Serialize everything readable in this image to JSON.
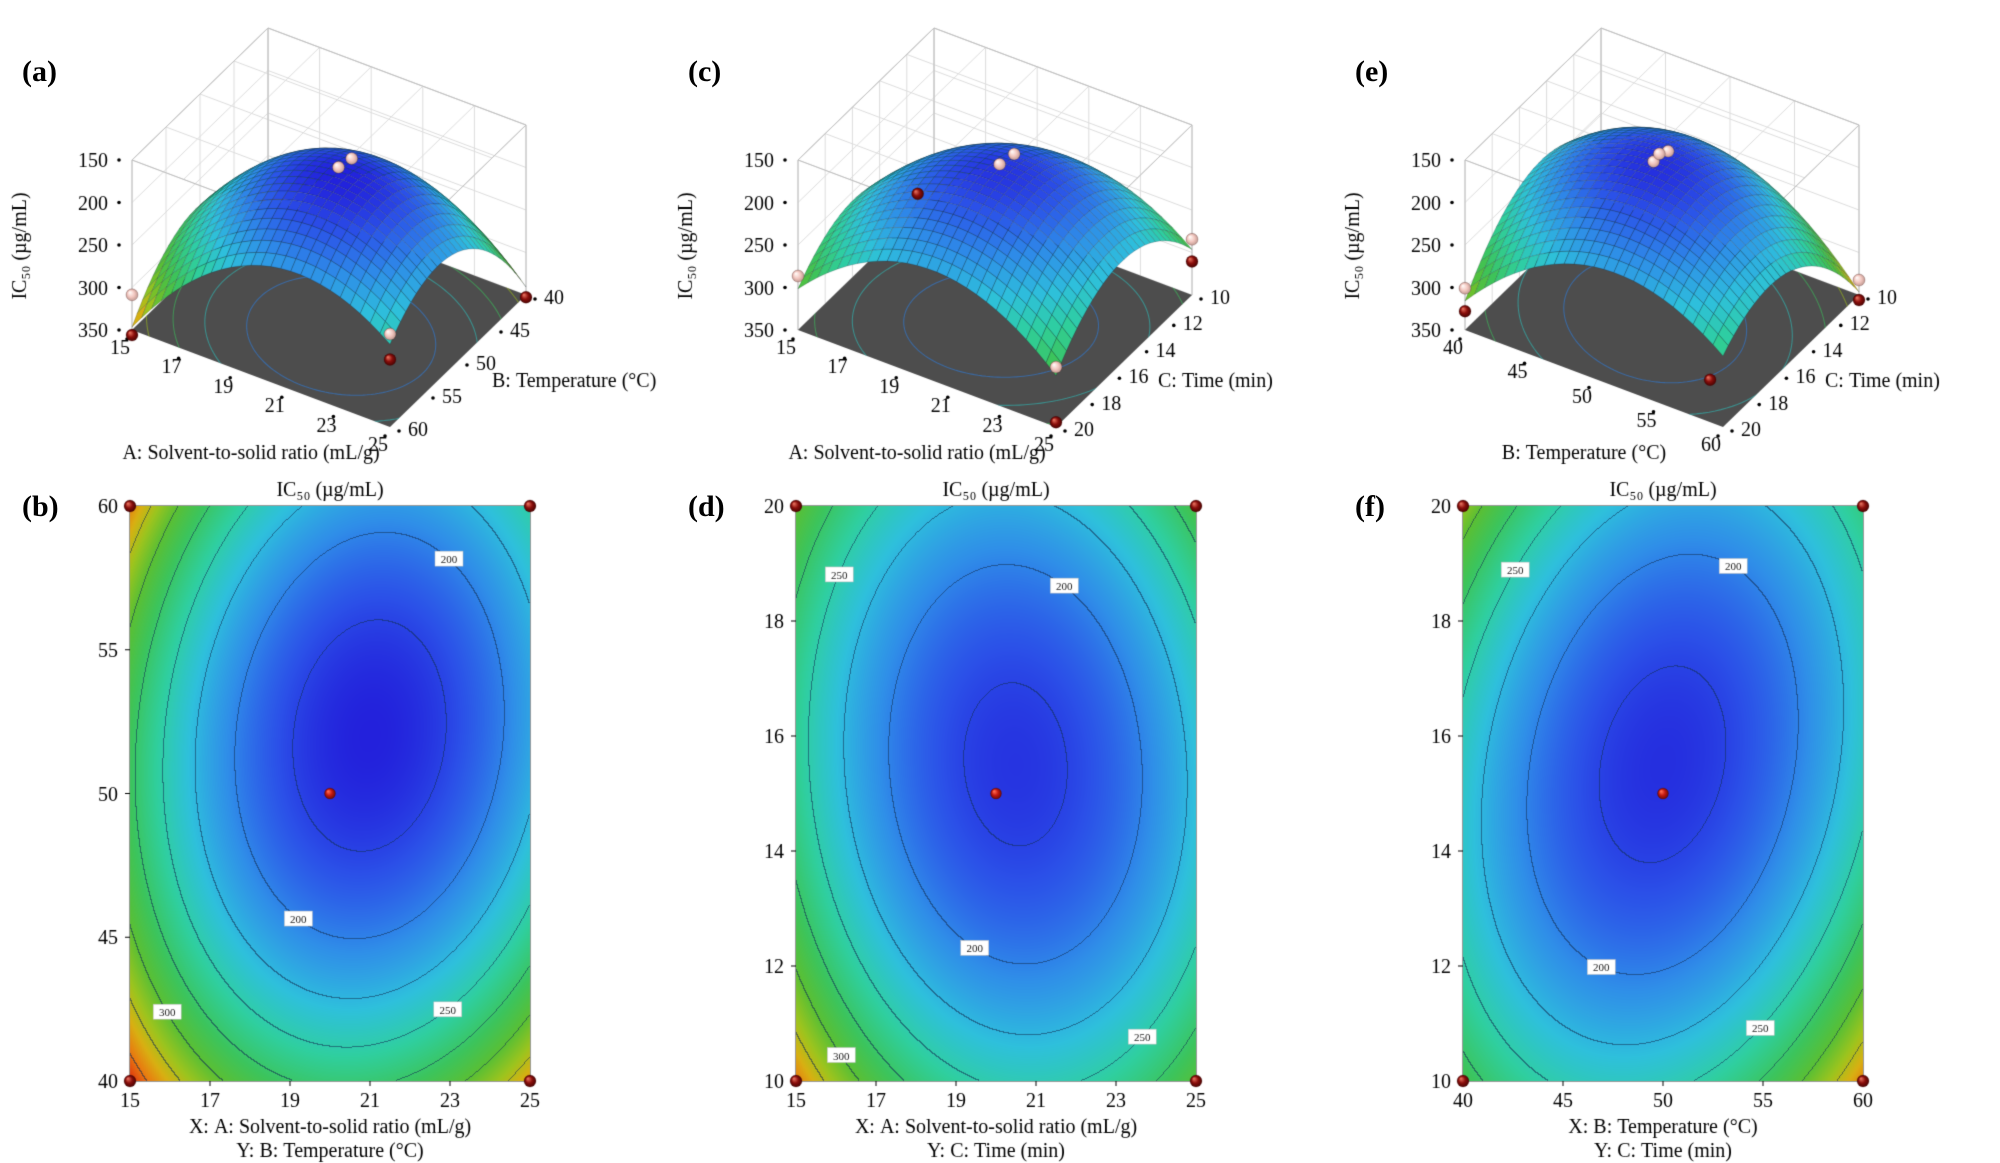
{
  "panels": {
    "a": {
      "letter": "(a)"
    },
    "b": {
      "letter": "(b)"
    },
    "c": {
      "letter": "(c)"
    },
    "d": {
      "letter": "(d)"
    },
    "e": {
      "letter": "(e)"
    },
    "f": {
      "letter": "(f)"
    }
  },
  "colormap": [
    [
      158,
      "#2013d8"
    ],
    [
      180,
      "#2b50e8"
    ],
    [
      205,
      "#2f8fe8"
    ],
    [
      230,
      "#2ec0dc"
    ],
    [
      255,
      "#2fcf9f"
    ],
    [
      280,
      "#3cc45c"
    ],
    [
      300,
      "#5abf34"
    ],
    [
      318,
      "#9cc41e"
    ],
    [
      334,
      "#d8b012"
    ],
    [
      348,
      "#e87c10"
    ],
    [
      362,
      "#e0390e"
    ]
  ],
  "point_colors": {
    "dark": "#8b0f0c",
    "pink": "#f2c6bf",
    "center": "#c41a12"
  },
  "chart_data": [
    {
      "id": "a",
      "type": "surface3d",
      "panel": "(a)",
      "zlabel": "IC₅₀ (µg/mL)",
      "xlabel": "A: Solvent-to-solid ratio (mL/g)",
      "ylabel": "B: Temperature (°C)",
      "x_range": [
        15,
        25
      ],
      "y_range": [
        40,
        60
      ],
      "z_range": [
        150,
        350
      ],
      "x_ticks": [
        15,
        17,
        19,
        21,
        23,
        25
      ],
      "y_ticks": [
        40,
        45,
        50,
        55,
        60
      ],
      "z_ticks_top_to_bottom": [
        150,
        200,
        250,
        300,
        350
      ],
      "model": {
        "vmin": 163,
        "x0": 0.6,
        "y0": 0.6,
        "P": 330,
        "Q": 300,
        "R": -70
      },
      "floor_levels": [
        200,
        240,
        280,
        320
      ],
      "points": [
        {
          "x": 0.6,
          "y": 0.62,
          "dv": -14,
          "c": "pink"
        },
        {
          "x": 0.63,
          "y": 0.58,
          "dv": -22,
          "c": "pink"
        },
        {
          "x": 0,
          "y": 1,
          "dv": 10,
          "c": "dark"
        },
        {
          "x": 0,
          "y": 1,
          "dv": -38,
          "c": "pink"
        },
        {
          "x": 1,
          "y": 0,
          "dv": 12,
          "c": "dark"
        },
        {
          "x": 1,
          "y": 1,
          "dv": -12,
          "c": "pink"
        },
        {
          "x": 1,
          "y": 1,
          "dv": 18,
          "c": "dark"
        }
      ]
    },
    {
      "id": "b",
      "type": "contour",
      "panel": "(b)",
      "title": "IC₅₀ (µg/mL)",
      "xlabel": "X: A: Solvent-to-solid ratio (mL/g)",
      "ylabel": "Y: B: Temperature (°C)",
      "x_range": [
        15,
        25
      ],
      "y_range": [
        40,
        60
      ],
      "x_ticks": [
        15,
        17,
        19,
        21,
        23,
        25
      ],
      "y_ticks": [
        40,
        45,
        50,
        55,
        60
      ],
      "model": {
        "vmin": 163,
        "x0": 0.6,
        "y0": 0.6,
        "P": 330,
        "Q": 300,
        "R": -70
      },
      "contour_base": 175,
      "contour_step": 25,
      "labels": [
        {
          "level": 200,
          "angle": 1.0
        },
        {
          "level": 250,
          "angle": 2.3
        },
        {
          "level": 250,
          "angle": 5.1
        },
        {
          "level": 300,
          "angle": 3.9
        },
        {
          "level": 300,
          "angle": 0.5
        },
        {
          "level": 200,
          "angle": 4.2
        }
      ],
      "center_point": [
        20,
        50
      ],
      "corner_points": [
        [
          15,
          40
        ],
        [
          25,
          40
        ],
        [
          15,
          60
        ],
        [
          25,
          60
        ]
      ]
    },
    {
      "id": "c",
      "type": "surface3d",
      "panel": "(c)",
      "zlabel": "IC₅₀ (µg/mL)",
      "xlabel": "A: Solvent-to-solid ratio (mL/g)",
      "ylabel": "C: Time (min)",
      "x_range": [
        15,
        25
      ],
      "y_range": [
        10,
        20
      ],
      "z_range": [
        150,
        350
      ],
      "x_ticks": [
        15,
        17,
        19,
        21,
        23,
        25
      ],
      "y_ticks": [
        10,
        12,
        14,
        16,
        18,
        20
      ],
      "z_ticks_top_to_bottom": [
        150,
        200,
        250,
        300,
        350
      ],
      "model": {
        "vmin": 170,
        "x0": 0.55,
        "y0": 0.55,
        "P": 300,
        "Q": 250,
        "R": 40
      },
      "floor_levels": [
        200,
        240,
        280,
        320
      ],
      "points": [
        {
          "x": 0.56,
          "y": 0.58,
          "dv": -14,
          "c": "pink"
        },
        {
          "x": 0.59,
          "y": 0.53,
          "dv": -22,
          "c": "pink"
        },
        {
          "x": 0,
          "y": 0.12,
          "dv": 10,
          "c": "dark"
        },
        {
          "x": 0,
          "y": 1,
          "dv": -15,
          "c": "pink"
        },
        {
          "x": 1,
          "y": 0,
          "dv": -12,
          "c": "pink"
        },
        {
          "x": 1,
          "y": 0,
          "dv": 14,
          "c": "dark"
        },
        {
          "x": 1,
          "y": 1,
          "dv": 55,
          "c": "dark"
        },
        {
          "x": 1,
          "y": 1,
          "dv": -10,
          "c": "pink"
        }
      ]
    },
    {
      "id": "d",
      "type": "contour",
      "panel": "(d)",
      "title": "IC₅₀ (µg/mL)",
      "xlabel": "X: A: Solvent-to-solid ratio (mL/g)",
      "ylabel": "Y: C: Time (min)",
      "x_range": [
        15,
        25
      ],
      "y_range": [
        10,
        20
      ],
      "x_ticks": [
        15,
        17,
        19,
        21,
        23,
        25
      ],
      "y_ticks": [
        10,
        12,
        14,
        16,
        18,
        20
      ],
      "model": {
        "vmin": 170,
        "x0": 0.55,
        "y0": 0.55,
        "P": 300,
        "Q": 250,
        "R": 40
      },
      "contour_base": 175,
      "contour_step": 25,
      "labels": [
        {
          "level": 200,
          "angle": 1.2
        },
        {
          "level": 250,
          "angle": 2.5
        },
        {
          "level": 250,
          "angle": 5.3
        },
        {
          "level": 300,
          "angle": 4.0
        },
        {
          "level": 300,
          "angle": 0.3
        },
        {
          "level": 200,
          "angle": 4.4
        }
      ],
      "center_point": [
        20,
        15
      ],
      "corner_points": [
        [
          15,
          10
        ],
        [
          25,
          10
        ],
        [
          15,
          20
        ],
        [
          25,
          20
        ]
      ]
    },
    {
      "id": "e",
      "type": "surface3d",
      "panel": "(e)",
      "zlabel": "IC₅₀ (µg/mL)",
      "xlabel": "B: Temperature (°C)",
      "ylabel": "C: Time (min)",
      "x_range": [
        40,
        60
      ],
      "y_range": [
        10,
        20
      ],
      "z_range": [
        150,
        350
      ],
      "x_ticks": [
        40,
        45,
        50,
        55,
        60
      ],
      "y_ticks": [
        10,
        12,
        14,
        16,
        18,
        20
      ],
      "z_ticks_top_to_bottom": [
        150,
        200,
        250,
        300,
        350
      ],
      "model": {
        "vmin": 168,
        "x0": 0.5,
        "y0": 0.55,
        "P": 290,
        "Q": 250,
        "R": -110
      },
      "floor_levels": [
        200,
        240,
        280,
        320
      ],
      "points": [
        {
          "x": 0.52,
          "y": 0.6,
          "dv": -14,
          "c": "pink"
        },
        {
          "x": 0.55,
          "y": 0.55,
          "dv": -22,
          "c": "pink"
        },
        {
          "x": 0.5,
          "y": 0.52,
          "dv": -8,
          "c": "pink"
        },
        {
          "x": 0,
          "y": 1,
          "dv": -15,
          "c": "pink"
        },
        {
          "x": 0,
          "y": 1,
          "dv": 12,
          "c": "dark"
        },
        {
          "x": 1,
          "y": 0,
          "dv": -14,
          "c": "pink"
        },
        {
          "x": 1,
          "y": 0,
          "dv": 14,
          "c": "dark"
        },
        {
          "x": 0.95,
          "y": 1,
          "dv": 45,
          "c": "dark"
        }
      ]
    },
    {
      "id": "f",
      "type": "contour",
      "panel": "(f)",
      "title": "IC₅₀ (µg/mL)",
      "xlabel": "X: B: Temperature (°C)",
      "ylabel": "Y: C: Time (min)",
      "x_range": [
        40,
        60
      ],
      "y_range": [
        10,
        20
      ],
      "x_ticks": [
        40,
        45,
        50,
        55,
        60
      ],
      "y_ticks": [
        10,
        12,
        14,
        16,
        18,
        20
      ],
      "model": {
        "vmin": 168,
        "x0": 0.5,
        "y0": 0.55,
        "P": 290,
        "Q": 250,
        "R": -110
      },
      "contour_base": 175,
      "contour_step": 25,
      "labels": [
        {
          "level": 200,
          "angle": 1.1
        },
        {
          "level": 250,
          "angle": 2.4
        },
        {
          "level": 250,
          "angle": 5.2
        },
        {
          "level": 300,
          "angle": 3.9
        },
        {
          "level": 300,
          "angle": 0.4
        },
        {
          "level": 200,
          "angle": 4.3
        }
      ],
      "center_point": [
        50,
        15
      ],
      "corner_points": [
        [
          40,
          10
        ],
        [
          60,
          10
        ],
        [
          40,
          20
        ],
        [
          60,
          20
        ]
      ]
    }
  ]
}
